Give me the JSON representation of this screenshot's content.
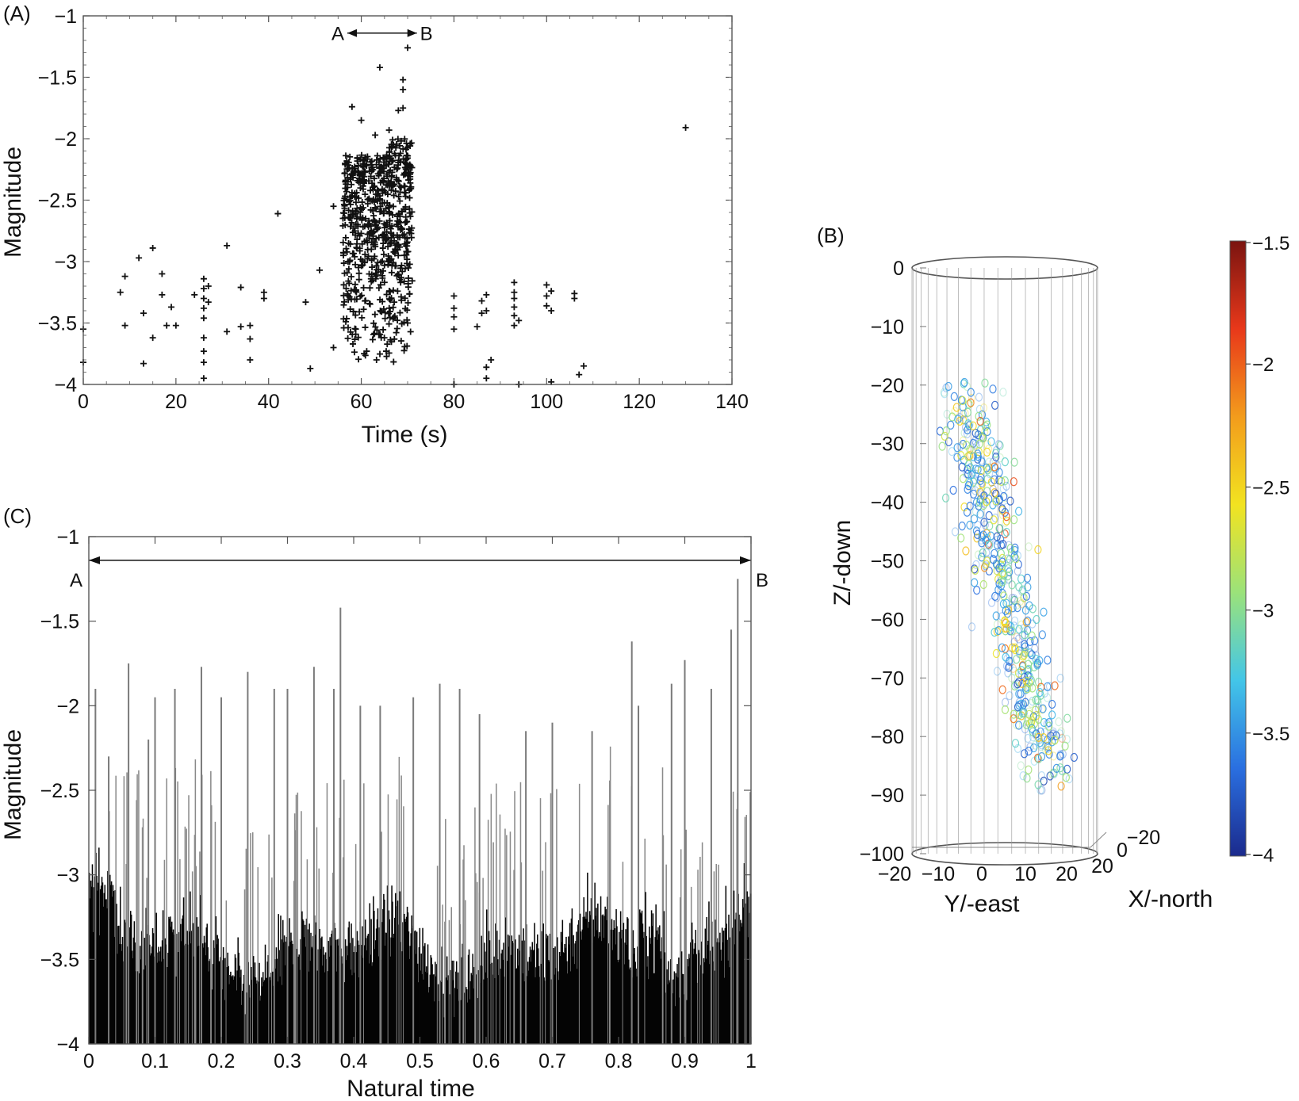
{
  "chart_data": [
    {
      "panel": "(A)",
      "type": "scatter",
      "xlabel": "Time (s)",
      "ylabel": "Magnitude",
      "xlim": [
        0,
        140
      ],
      "ylim": [
        -4,
        -1
      ],
      "xticks": [
        0,
        20,
        40,
        60,
        80,
        100,
        120,
        140
      ],
      "yticks": [
        -1,
        -1.5,
        -2,
        -2.5,
        -3,
        -3.5,
        -4
      ],
      "ytick_labels": [
        "−1",
        "−1.5",
        "−2",
        "−2.5",
        "−3",
        "−3.5",
        "−4"
      ],
      "annotation": {
        "left": "A",
        "right": "B",
        "x_start": 57,
        "x_end": 72,
        "y": -1.14
      },
      "points": [
        {
          "x": 0,
          "y": -3.55
        },
        {
          "x": 0,
          "y": -3.82
        },
        {
          "x": 8,
          "y": -3.25
        },
        {
          "x": 9,
          "y": -3.12
        },
        {
          "x": 9,
          "y": -3.52
        },
        {
          "x": 12,
          "y": -2.97
        },
        {
          "x": 13,
          "y": -3.42
        },
        {
          "x": 13,
          "y": -3.83
        },
        {
          "x": 15,
          "y": -2.89
        },
        {
          "x": 15,
          "y": -3.62
        },
        {
          "x": 17,
          "y": -3.1
        },
        {
          "x": 17,
          "y": -3.27
        },
        {
          "x": 18,
          "y": -3.52
        },
        {
          "x": 19,
          "y": -3.37
        },
        {
          "x": 20,
          "y": -3.52
        },
        {
          "x": 24,
          "y": -3.27
        },
        {
          "x": 26,
          "y": -3.14
        },
        {
          "x": 26,
          "y": -3.22
        },
        {
          "x": 26,
          "y": -3.3
        },
        {
          "x": 26,
          "y": -3.38
        },
        {
          "x": 26,
          "y": -3.46
        },
        {
          "x": 26,
          "y": -3.62
        },
        {
          "x": 26,
          "y": -3.73
        },
        {
          "x": 26,
          "y": -3.82
        },
        {
          "x": 26,
          "y": -3.95
        },
        {
          "x": 27,
          "y": -3.2
        },
        {
          "x": 27,
          "y": -3.33
        },
        {
          "x": 31,
          "y": -2.87
        },
        {
          "x": 31,
          "y": -3.57
        },
        {
          "x": 34,
          "y": -3.21
        },
        {
          "x": 34,
          "y": -3.53
        },
        {
          "x": 36,
          "y": -3.52
        },
        {
          "x": 36,
          "y": -3.63
        },
        {
          "x": 36,
          "y": -3.8
        },
        {
          "x": 39,
          "y": -3.25
        },
        {
          "x": 39,
          "y": -3.3
        },
        {
          "x": 42,
          "y": -2.61
        },
        {
          "x": 48,
          "y": -3.33
        },
        {
          "x": 49,
          "y": -3.87
        },
        {
          "x": 51,
          "y": -3.07
        },
        {
          "x": 54,
          "y": -2.55
        },
        {
          "x": 54,
          "y": -3.7
        },
        {
          "x": 58,
          "y": -1.74
        },
        {
          "x": 60,
          "y": -1.85
        },
        {
          "x": 61,
          "y": -2.21
        },
        {
          "x": 63,
          "y": -1.97
        },
        {
          "x": 64,
          "y": -1.42
        },
        {
          "x": 66,
          "y": -1.93
        },
        {
          "x": 68,
          "y": -1.77
        },
        {
          "x": 69,
          "y": -1.52
        },
        {
          "x": 69,
          "y": -1.6
        },
        {
          "x": 69,
          "y": -1.75
        },
        {
          "x": 70,
          "y": -1.26
        },
        {
          "x": 70,
          "y": -3.5
        },
        {
          "x": 80,
          "y": -3.28
        },
        {
          "x": 80,
          "y": -3.38
        },
        {
          "x": 80,
          "y": -3.45
        },
        {
          "x": 80,
          "y": -3.55
        },
        {
          "x": 80,
          "y": -4.0
        },
        {
          "x": 85,
          "y": -3.53
        },
        {
          "x": 86,
          "y": -3.32
        },
        {
          "x": 86,
          "y": -3.42
        },
        {
          "x": 87,
          "y": -3.27
        },
        {
          "x": 87,
          "y": -3.4
        },
        {
          "x": 87,
          "y": -3.86
        },
        {
          "x": 87,
          "y": -3.95
        },
        {
          "x": 88,
          "y": -3.8
        },
        {
          "x": 93,
          "y": -3.17
        },
        {
          "x": 93,
          "y": -3.25
        },
        {
          "x": 93,
          "y": -3.3
        },
        {
          "x": 93,
          "y": -3.37
        },
        {
          "x": 93,
          "y": -3.44
        },
        {
          "x": 93,
          "y": -3.52
        },
        {
          "x": 94,
          "y": -3.48
        },
        {
          "x": 94,
          "y": -4.0
        },
        {
          "x": 100,
          "y": -3.19
        },
        {
          "x": 100,
          "y": -3.28
        },
        {
          "x": 100,
          "y": -3.36
        },
        {
          "x": 101,
          "y": -3.24
        },
        {
          "x": 101,
          "y": -3.4
        },
        {
          "x": 101,
          "y": -3.98
        },
        {
          "x": 106,
          "y": -3.26
        },
        {
          "x": 106,
          "y": -3.3
        },
        {
          "x": 107,
          "y": -3.92
        },
        {
          "x": 108,
          "y": -3.85
        },
        {
          "x": 130,
          "y": -1.91
        }
      ],
      "dense_cluster": {
        "x_range": [
          56,
          71
        ],
        "y_range": [
          -3.85,
          -2.0
        ],
        "description_count": 700
      }
    },
    {
      "panel": "(B)",
      "type": "scatter3d",
      "xlabel": "Y/-east",
      "ylabel": "X/-north",
      "zlabel": "Z/-down",
      "yaxis_ticks": [
        "−20",
        "−10",
        "0",
        "10",
        "20"
      ],
      "xaxis_ticks": [
        "−20",
        "0",
        "20"
      ],
      "zaxis_ticks": [
        "0",
        "−10",
        "−20",
        "−30",
        "−40",
        "−50",
        "−60",
        "−70",
        "−80",
        "−90",
        "−100"
      ],
      "zlim": [
        -100,
        0
      ],
      "colorbar": {
        "ticks": [
          "−1.5",
          "−2",
          "−2.5",
          "−3",
          "−3.5",
          "−4"
        ],
        "range": [
          -4,
          -1.5
        ],
        "colors": [
          "#1b2a8c",
          "#2a6fe0",
          "#43c6e8",
          "#9be27a",
          "#f2e320",
          "#f39c1c",
          "#e8381a",
          "#7a1410"
        ]
      },
      "trend": {
        "from": [
          0,
          -22
        ],
        "to": [
          15,
          -85
        ]
      }
    },
    {
      "panel": "(C)",
      "type": "bar",
      "xlabel": "Natural time",
      "ylabel": "Magnitude",
      "xlim": [
        0,
        1
      ],
      "ylim": [
        -4,
        -1
      ],
      "xticks": [
        "0",
        "0.1",
        "0.2",
        "0.3",
        "0.4",
        "0.5",
        "0.6",
        "0.7",
        "0.8",
        "0.9",
        "1"
      ],
      "yticks": [
        -1,
        -1.5,
        -2,
        -2.5,
        -3,
        -3.5,
        -4
      ],
      "ytick_labels": [
        "−1",
        "−1.5",
        "−2",
        "−2.5",
        "−3",
        "−3.5",
        "−4"
      ],
      "annotation": {
        "left": "A",
        "right": "B",
        "x_start": 0,
        "x_end": 1,
        "y": -1.14
      },
      "n_bars": 900,
      "spikes": [
        {
          "x": 0.01,
          "y": -1.9
        },
        {
          "x": 0.03,
          "y": -2.3
        },
        {
          "x": 0.06,
          "y": -1.75
        },
        {
          "x": 0.09,
          "y": -2.2
        },
        {
          "x": 0.1,
          "y": -1.95
        },
        {
          "x": 0.13,
          "y": -1.9
        },
        {
          "x": 0.17,
          "y": -1.77
        },
        {
          "x": 0.2,
          "y": -1.95
        },
        {
          "x": 0.24,
          "y": -1.8
        },
        {
          "x": 0.28,
          "y": -1.9
        },
        {
          "x": 0.3,
          "y": -1.9
        },
        {
          "x": 0.34,
          "y": -1.77
        },
        {
          "x": 0.37,
          "y": -1.9
        },
        {
          "x": 0.38,
          "y": -1.42
        },
        {
          "x": 0.41,
          "y": -2.0
        },
        {
          "x": 0.44,
          "y": -2.0
        },
        {
          "x": 0.49,
          "y": -1.95
        },
        {
          "x": 0.53,
          "y": -1.87
        },
        {
          "x": 0.56,
          "y": -1.9
        },
        {
          "x": 0.59,
          "y": -2.05
        },
        {
          "x": 0.66,
          "y": -2.15
        },
        {
          "x": 0.7,
          "y": -2.1
        },
        {
          "x": 0.76,
          "y": -2.15
        },
        {
          "x": 0.82,
          "y": -1.62
        },
        {
          "x": 0.83,
          "y": -2.0
        },
        {
          "x": 0.88,
          "y": -1.87
        },
        {
          "x": 0.9,
          "y": -1.73
        },
        {
          "x": 0.94,
          "y": -1.9
        },
        {
          "x": 0.97,
          "y": -1.55
        },
        {
          "x": 0.98,
          "y": -1.25
        }
      ]
    }
  ]
}
